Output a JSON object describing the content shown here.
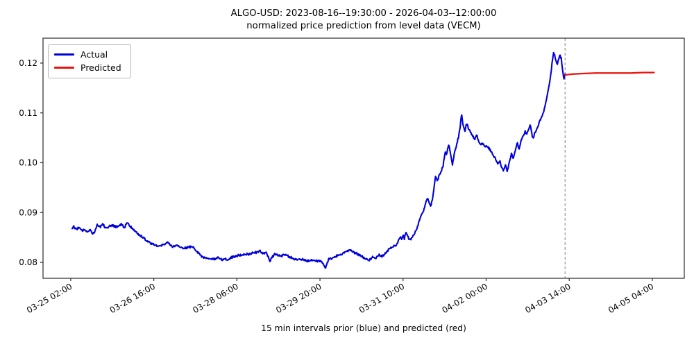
{
  "figure": {
    "title_line1": "ALGO-USD: 2023-08-16--19:30:00 - 2026-04-03--12:00:00",
    "title_line2": "normalized price prediction from level data (VECM)",
    "xlabel": "15 min intervals prior (blue) and predicted (red)",
    "background": "#ffffff",
    "legend": [
      {
        "label": "Actual",
        "color": "#0000dd"
      },
      {
        "label": "Predicted",
        "color": "#ec130c"
      }
    ]
  },
  "chart_data": {
    "type": "line",
    "title": "ALGO-USD: 2023-08-16--19:30:00 - 2026-04-03--12:00:00 / normalized price prediction from level data (VECM)",
    "xlabel": "15 min intervals prior (blue) and predicted (red)",
    "x_unit": "hours since 03-25 00:00",
    "xlim": [
      -10.67,
      282.63
    ],
    "ylim": [
      0.0768,
      0.125
    ],
    "grid": false,
    "legend_position": "upper-left",
    "axis_color": "#2a2a2a",
    "yticks": [
      {
        "v": 0.08,
        "label": "0.08"
      },
      {
        "v": 0.09,
        "label": "0.09"
      },
      {
        "v": 0.1,
        "label": "0.10"
      },
      {
        "v": 0.11,
        "label": "0.11"
      },
      {
        "v": 0.12,
        "label": "0.12"
      }
    ],
    "xticks": [
      {
        "t": 2,
        "label": "03-25 02:00"
      },
      {
        "t": 40,
        "label": "03-26 16:00"
      },
      {
        "t": 78,
        "label": "03-28 06:00"
      },
      {
        "t": 116,
        "label": "03-29 20:00"
      },
      {
        "t": 154,
        "label": "03-31 10:00"
      },
      {
        "t": 192,
        "label": "04-02 00:00"
      },
      {
        "t": 230,
        "label": "04-03 14:00"
      },
      {
        "t": 268,
        "label": "04-05 04:00"
      }
    ],
    "split_line": {
      "t": 228.1,
      "color": "#7f7f7f",
      "dash": "4 3"
    },
    "noise_step_hours": 0.25,
    "noise_seed": 12,
    "series": [
      {
        "name": "Actual",
        "color": "#0000dd",
        "width": 2.1,
        "noise_amp": 0.00022,
        "points": [
          [
            2.6,
            0.0869
          ],
          [
            3.5,
            0.0872
          ],
          [
            4.5,
            0.0866
          ],
          [
            5.8,
            0.087
          ],
          [
            7.1,
            0.0863
          ],
          [
            8.4,
            0.0866
          ],
          [
            9.7,
            0.0862
          ],
          [
            11,
            0.0866
          ],
          [
            12,
            0.0857
          ],
          [
            13.1,
            0.0863
          ],
          [
            14,
            0.0876
          ],
          [
            15.5,
            0.0871
          ],
          [
            16.6,
            0.0878
          ],
          [
            18,
            0.0869
          ],
          [
            19.5,
            0.0872
          ],
          [
            21,
            0.0874
          ],
          [
            22.9,
            0.0871
          ],
          [
            25.1,
            0.0876
          ],
          [
            26.7,
            0.0869
          ],
          [
            27.6,
            0.0881
          ],
          [
            28.9,
            0.0874
          ],
          [
            30.5,
            0.0867
          ],
          [
            32.1,
            0.086
          ],
          [
            34,
            0.0853
          ],
          [
            36.2,
            0.0846
          ],
          [
            38.4,
            0.0839
          ],
          [
            40.3,
            0.0836
          ],
          [
            42.5,
            0.0832
          ],
          [
            44.7,
            0.0836
          ],
          [
            46,
            0.0841
          ],
          [
            48.2,
            0.0832
          ],
          [
            50.4,
            0.0834
          ],
          [
            52.7,
            0.0829
          ],
          [
            55.2,
            0.0829
          ],
          [
            57.4,
            0.0832
          ],
          [
            59.3,
            0.0825
          ],
          [
            60.6,
            0.0818
          ],
          [
            62.2,
            0.0811
          ],
          [
            64.1,
            0.0808
          ],
          [
            66.3,
            0.0807
          ],
          [
            67.9,
            0.0806
          ],
          [
            69.5,
            0.0809
          ],
          [
            71,
            0.0805
          ],
          [
            72.5,
            0.0807
          ],
          [
            74.2,
            0.0806
          ],
          [
            76,
            0.0811
          ],
          [
            77.4,
            0.0812
          ],
          [
            79,
            0.0815
          ],
          [
            80.5,
            0.0814
          ],
          [
            82,
            0.0817
          ],
          [
            83.7,
            0.0816
          ],
          [
            85.3,
            0.0819
          ],
          [
            86.9,
            0.082
          ],
          [
            88.4,
            0.0823
          ],
          [
            90,
            0.0818
          ],
          [
            91.2,
            0.082
          ],
          [
            92.2,
            0.0812
          ],
          [
            93.3,
            0.0802
          ],
          [
            94,
            0.081
          ],
          [
            95.4,
            0.0817
          ],
          [
            96.4,
            0.0816
          ],
          [
            98,
            0.0812
          ],
          [
            99.5,
            0.0815
          ],
          [
            101.1,
            0.0813
          ],
          [
            102.7,
            0.081
          ],
          [
            104.3,
            0.0806
          ],
          [
            105.9,
            0.0805
          ],
          [
            107.5,
            0.0807
          ],
          [
            109,
            0.0804
          ],
          [
            110.6,
            0.0803
          ],
          [
            112.2,
            0.0805
          ],
          [
            113.8,
            0.0802
          ],
          [
            115.3,
            0.0803
          ],
          [
            116.9,
            0.0801
          ],
          [
            117.7,
            0.0796
          ],
          [
            118.5,
            0.0787
          ],
          [
            119.3,
            0.08
          ],
          [
            120.1,
            0.0806
          ],
          [
            121.7,
            0.0808
          ],
          [
            123.2,
            0.0812
          ],
          [
            124.8,
            0.0815
          ],
          [
            126.4,
            0.0818
          ],
          [
            128,
            0.0822
          ],
          [
            129.6,
            0.0824
          ],
          [
            131.2,
            0.082
          ],
          [
            132.7,
            0.0818
          ],
          [
            134.3,
            0.0814
          ],
          [
            135.9,
            0.081
          ],
          [
            137.5,
            0.0806
          ],
          [
            138.7,
            0.0805
          ],
          [
            140.2,
            0.0812
          ],
          [
            141.5,
            0.0809
          ],
          [
            142.9,
            0.0815
          ],
          [
            144.4,
            0.0812
          ],
          [
            145.9,
            0.0818
          ],
          [
            147,
            0.0824
          ],
          [
            148.6,
            0.083
          ],
          [
            150.1,
            0.0834
          ],
          [
            151.4,
            0.0836
          ],
          [
            152.1,
            0.0847
          ],
          [
            152.8,
            0.0852
          ],
          [
            153.4,
            0.0844
          ],
          [
            154,
            0.0857
          ],
          [
            154.6,
            0.0848
          ],
          [
            155.3,
            0.086
          ],
          [
            156.1,
            0.0852
          ],
          [
            157.1,
            0.0845
          ],
          [
            158.1,
            0.0848
          ],
          [
            158.9,
            0.0856
          ],
          [
            159.7,
            0.0862
          ],
          [
            160.6,
            0.0872
          ],
          [
            161.6,
            0.0885
          ],
          [
            162.4,
            0.0895
          ],
          [
            163.2,
            0.0902
          ],
          [
            164.1,
            0.0915
          ],
          [
            164.9,
            0.0925
          ],
          [
            165.5,
            0.0928
          ],
          [
            166.1,
            0.0918
          ],
          [
            166.7,
            0.0914
          ],
          [
            167.3,
            0.0925
          ],
          [
            167.9,
            0.094
          ],
          [
            168.4,
            0.0958
          ],
          [
            168.9,
            0.0972
          ],
          [
            169.5,
            0.0965
          ],
          [
            170.2,
            0.097
          ],
          [
            170.9,
            0.0978
          ],
          [
            171.6,
            0.0985
          ],
          [
            172.3,
            0.0994
          ],
          [
            172.9,
            0.101
          ],
          [
            173.4,
            0.1022
          ],
          [
            174,
            0.1016
          ],
          [
            174.8,
            0.1038
          ],
          [
            175.5,
            0.1025
          ],
          [
            176.1,
            0.1008
          ],
          [
            176.6,
            0.0997
          ],
          [
            177.2,
            0.1012
          ],
          [
            178,
            0.1028
          ],
          [
            178.7,
            0.104
          ],
          [
            179.4,
            0.1052
          ],
          [
            180,
            0.1068
          ],
          [
            180.5,
            0.1088
          ],
          [
            180.8,
            0.1098
          ],
          [
            181.2,
            0.1082
          ],
          [
            181.7,
            0.1072
          ],
          [
            182.3,
            0.1064
          ],
          [
            182.9,
            0.1078
          ],
          [
            183.5,
            0.1074
          ],
          [
            184.2,
            0.1066
          ],
          [
            185,
            0.106
          ],
          [
            185.9,
            0.1053
          ],
          [
            186.8,
            0.1048
          ],
          [
            187.7,
            0.1056
          ],
          [
            188.5,
            0.1042
          ],
          [
            189.4,
            0.1036
          ],
          [
            190.4,
            0.1038
          ],
          [
            191.4,
            0.1032
          ],
          [
            192.4,
            0.1034
          ],
          [
            193.4,
            0.1028
          ],
          [
            194.4,
            0.1022
          ],
          [
            195.4,
            0.1012
          ],
          [
            196.4,
            0.1008
          ],
          [
            197.4,
            0.0998
          ],
          [
            198.3,
            0.1004
          ],
          [
            199.3,
            0.0988
          ],
          [
            199.9,
            0.0984
          ],
          [
            200.8,
            0.0996
          ],
          [
            201.7,
            0.0982
          ],
          [
            202.7,
            0.1002
          ],
          [
            203.5,
            0.1018
          ],
          [
            204.5,
            0.1008
          ],
          [
            205.5,
            0.1028
          ],
          [
            206.2,
            0.1042
          ],
          [
            207.1,
            0.1026
          ],
          [
            208,
            0.1046
          ],
          [
            208.9,
            0.1052
          ],
          [
            209.8,
            0.1063
          ],
          [
            210.6,
            0.1056
          ],
          [
            211.5,
            0.107
          ],
          [
            212.2,
            0.1076
          ],
          [
            212.9,
            0.1058
          ],
          [
            213.5,
            0.1046
          ],
          [
            214.2,
            0.106
          ],
          [
            215.1,
            0.1067
          ],
          [
            216.1,
            0.1078
          ],
          [
            217.3,
            0.1092
          ],
          [
            218.3,
            0.1103
          ],
          [
            219.2,
            0.112
          ],
          [
            220.1,
            0.1138
          ],
          [
            221,
            0.1158
          ],
          [
            221.7,
            0.118
          ],
          [
            222.3,
            0.1206
          ],
          [
            222.8,
            0.1222
          ],
          [
            223.3,
            0.1218
          ],
          [
            223.9,
            0.1204
          ],
          [
            224.5,
            0.1197
          ],
          [
            225.1,
            0.1208
          ],
          [
            225.8,
            0.1215
          ],
          [
            226.4,
            0.1209
          ],
          [
            227,
            0.1186
          ],
          [
            227.6,
            0.1169
          ],
          [
            228.1,
            0.1178
          ]
        ]
      },
      {
        "name": "Predicted",
        "color": "#ec130c",
        "width": 2.3,
        "noise_amp": 0,
        "points": [
          [
            228.1,
            0.1176
          ],
          [
            229.5,
            0.1177
          ],
          [
            232,
            0.1178
          ],
          [
            236,
            0.1179
          ],
          [
            242,
            0.118
          ],
          [
            250,
            0.118
          ],
          [
            258,
            0.118
          ],
          [
            264,
            0.1181
          ],
          [
            268.8,
            0.1181
          ]
        ]
      }
    ]
  }
}
